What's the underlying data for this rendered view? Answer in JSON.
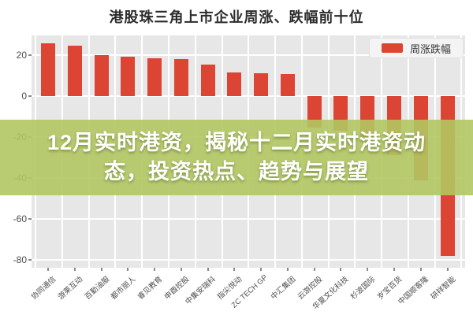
{
  "title": "港股珠三角上市企业周涨、跌幅前十位",
  "legend": {
    "label": "周涨跌幅",
    "swatch_color": "#dc4533"
  },
  "overlay": {
    "line1": "12月实时港资，揭秘十二月实时港资动",
    "line2": "态，投资热点、趋势与展望",
    "bg_color": "#b1c762",
    "text_color": "#ffffff"
  },
  "chart_data": {
    "type": "bar",
    "title": "港股珠三角上市企业周涨、跌幅前十位",
    "series_name": "周涨跌幅",
    "categories": [
      "协同通信",
      "游莱互动",
      "百勤油服",
      "都市丽人",
      "睿见教育",
      "申酉控股",
      "中集安瑞科",
      "指尖悦动",
      "ZC TECH GP",
      "中汇集团",
      "云游控股",
      "华夏文化科技",
      "杉波国际",
      "岁宝百货",
      "中国顺客隆",
      "研祥智能"
    ],
    "values": [
      25.7,
      24.5,
      20.0,
      19.3,
      18.6,
      18.2,
      15.2,
      11.5,
      11.2,
      10.7,
      -15.5,
      -17.0,
      -21.0,
      -29.0,
      -41.0,
      -78.0
    ],
    "yticks": [
      20,
      0,
      -20,
      -40,
      -60,
      -80
    ],
    "ylim": [
      -83.8,
      29.6
    ],
    "xlabel": "",
    "ylabel": "",
    "grid": true,
    "legend_position": "top-right",
    "bar_color": "#dc4533",
    "plot_bg_color": "#e7e7e7"
  }
}
